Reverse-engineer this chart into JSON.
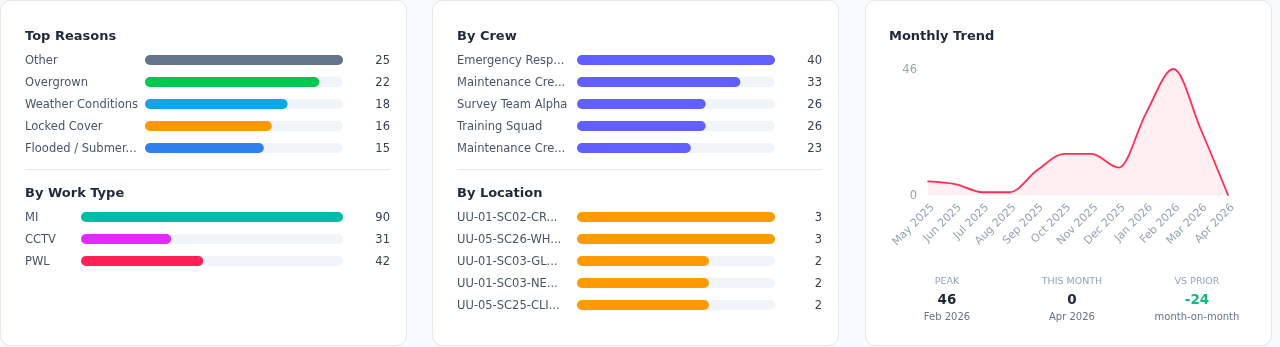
{
  "chart_data": [
    {
      "type": "bar",
      "orientation": "horizontal",
      "title": "Top Reasons",
      "categories": [
        "Other",
        "Overgrown",
        "Weather Conditions",
        "Locked Cover",
        "Flooded / Submer..."
      ],
      "values": [
        25,
        22,
        18,
        16,
        15
      ],
      "colors": [
        "#64748b",
        "#00c951",
        "#0ea5e9",
        "#ff9800",
        "#2f80ed"
      ],
      "data_labels": true
    },
    {
      "type": "bar",
      "orientation": "horizontal",
      "title": "By Work Type",
      "categories": [
        "MI",
        "CCTV",
        "PWL"
      ],
      "values": [
        90,
        31,
        42
      ],
      "colors": [
        "#00bba7",
        "#e12afb",
        "#ff2056"
      ],
      "data_labels": true
    },
    {
      "type": "bar",
      "orientation": "horizontal",
      "title": "By Crew",
      "categories": [
        "Emergency Resp...",
        "Maintenance Cre...",
        "Survey Team Alpha",
        "Training Squad",
        "Maintenance Cre..."
      ],
      "values": [
        40,
        33,
        26,
        26,
        23
      ],
      "color": "#615fff",
      "data_labels": true
    },
    {
      "type": "bar",
      "orientation": "horizontal",
      "title": "By Location",
      "categories": [
        "UU-01-SC02-CR...",
        "UU-05-SC26-WH...",
        "UU-01-SC03-GL...",
        "UU-01-SC03-NE...",
        "UU-05-SC25-CLI..."
      ],
      "values": [
        3,
        3,
        2,
        2,
        2
      ],
      "color": "#ff9a00",
      "data_labels": true
    },
    {
      "type": "area",
      "title": "Monthly Trend",
      "categories": [
        "May 2025",
        "Jun 2025",
        "Jul 2025",
        "Aug 2025",
        "Sep 2025",
        "Oct 2025",
        "Nov 2025",
        "Dec 2025",
        "Jan 2026",
        "Feb 2026",
        "Mar 2026",
        "Apr 2026"
      ],
      "values": [
        5,
        4,
        1,
        1,
        9,
        15,
        15,
        10,
        30,
        46,
        24,
        0
      ],
      "color": "#ff2d55",
      "ylim": [
        0,
        46
      ],
      "yticks": [
        0,
        46
      ]
    },
    {
      "type": "other",
      "categories": [
        "PEAK",
        "THIS MONTH",
        "VS PRIOR"
      ],
      "values": [
        46,
        0,
        -24
      ],
      "data_labels": true,
      "colors": [
        "#1e293b",
        "#1e293b",
        "#10b981"
      ],
      "annotations": [
        "Feb 2026",
        "Apr 2026",
        "month-on-month"
      ]
    }
  ]
}
